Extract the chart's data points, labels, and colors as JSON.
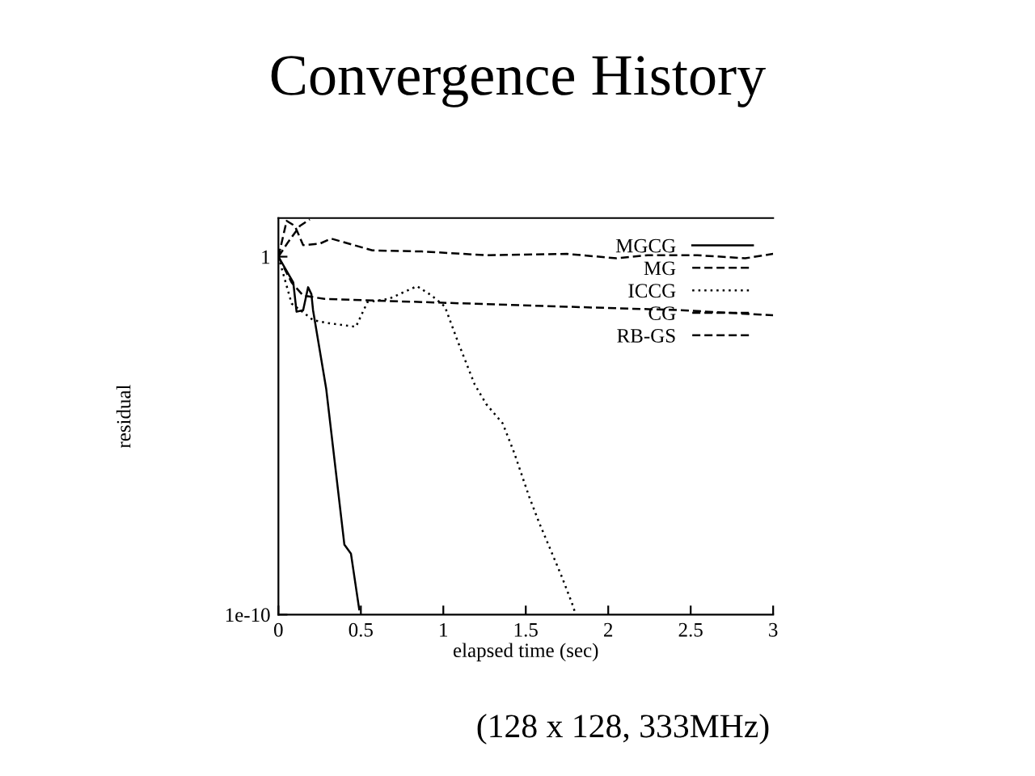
{
  "chart_data": {
    "type": "line",
    "title": "Convergence History",
    "xlabel": "elapsed time (sec)",
    "ylabel": "residual",
    "annotations": [
      "(128 x 128, 333MHz)"
    ],
    "log": "y",
    "xlim": [
      0,
      3
    ],
    "ylim": [
      1e-10,
      12
    ],
    "xticks": [
      0,
      0.5,
      1,
      1.5,
      2,
      2.5,
      3
    ],
    "yticks": [
      1,
      {
        "value": 1e-10,
        "label": "1e-10"
      }
    ],
    "grid": false,
    "legend": "top right",
    "marker": "none",
    "series": [
      {
        "name": "MGCG",
        "color": "#000000",
        "line_style": "solid",
        "x": [
          0,
          0.09,
          0.11,
          0.15,
          0.18,
          0.2,
          0.21,
          0.29,
          0.4,
          0.44,
          0.49
        ],
        "values": [
          1,
          0.19,
          0.029,
          0.032,
          0.14,
          0.09,
          0.032,
          0.0002,
          9e-09,
          5e-09,
          1.4e-10
        ]
      },
      {
        "name": "MG",
        "color": "#000000",
        "line_style": "dashed",
        "x": [
          0,
          0.06,
          0.13,
          0.19
        ],
        "values": [
          1,
          2.6,
          7.2,
          11
        ]
      },
      {
        "name": "ICCG",
        "color": "#000000",
        "line_style": "dotted",
        "x": [
          0,
          0.08,
          0.21,
          0.3,
          0.47,
          0.54,
          0.67,
          0.84,
          0.93,
          1.01,
          1.09,
          1.19,
          1.26,
          1.36,
          1.43,
          1.52,
          1.58,
          1.65,
          1.72,
          1.78,
          1.8
        ],
        "values": [
          1,
          0.049,
          0.017,
          0.014,
          0.011,
          0.054,
          0.066,
          0.15,
          0.082,
          0.04,
          0.004,
          0.00027,
          7.6e-05,
          2.2e-05,
          3.3e-06,
          2e-07,
          3.8e-08,
          6.5e-09,
          1.1e-09,
          2.1e-10,
          1.1e-10
        ]
      },
      {
        "name": "CG",
        "color": "#000000",
        "line_style": "dashed",
        "x": [
          0,
          0.08,
          0.15,
          0.28,
          0.87,
          1.75,
          2.44,
          3.0
        ],
        "values": [
          1,
          0.19,
          0.082,
          0.066,
          0.054,
          0.04,
          0.032,
          0.023
        ]
      },
      {
        "name": "RB-GS",
        "color": "#000000",
        "line_style": "dashed",
        "x": [
          0,
          0.05,
          0.1,
          0.15,
          0.25,
          0.32,
          0.57,
          0.87,
          1.26,
          1.75,
          2.05,
          2.24,
          2.54,
          2.83,
          3.0
        ],
        "values": [
          1,
          10,
          7.2,
          2.1,
          2.3,
          3.2,
          1.5,
          1.4,
          1.1,
          1.2,
          0.9,
          1.1,
          1.1,
          0.9,
          1.2
        ]
      }
    ]
  }
}
